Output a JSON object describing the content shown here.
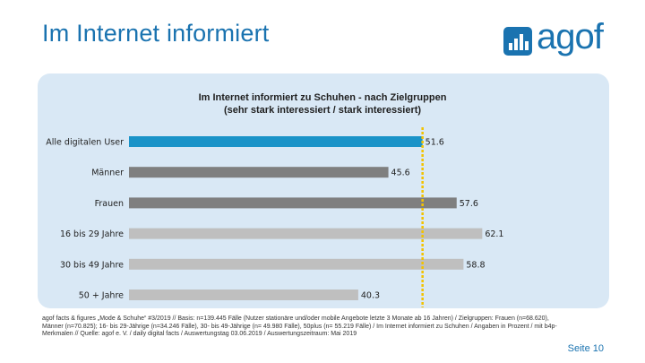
{
  "header": {
    "title": "Im Internet informiert",
    "logo_text": "agof"
  },
  "chart_data": {
    "type": "bar",
    "orientation": "horizontal",
    "title": "Im Internet informiert zu Schuhen -  nach Zielgruppen",
    "subtitle": "(sehr stark interessiert / stark interessiert)",
    "categories": [
      "Alle digitalen User",
      "Männer",
      "Frauen",
      "16 bis 29 Jahre",
      "30 bis 49 Jahre",
      "50 + Jahre"
    ],
    "values": [
      51.6,
      45.6,
      57.6,
      62.1,
      58.8,
      40.3
    ],
    "value_labels": [
      "51.6",
      "45.6",
      "57.6",
      "62.1",
      "58.8",
      "40.3"
    ],
    "colors": [
      "#1a93c8",
      "#7f7f7f",
      "#7f7f7f",
      "#bfbfbf",
      "#bfbfbf",
      "#bfbfbf"
    ],
    "reference_line": {
      "value": 51.6,
      "color": "#f2c200",
      "style": "dashed"
    },
    "xlim": [
      0,
      70
    ],
    "grid": false,
    "legend": "none"
  },
  "footer": {
    "note": "agof facts & figures „Mode & Schuhe“ #3/2019 // Basis: n=139.445 Fälle (Nutzer stationäre und/oder mobile Angebote letzte 3 Monate ab 16 Jahren) / Zielgruppen: Frauen (n=68.620), Männer (n=70.825); 16- bis 29-Jährige (n=34.246 Fälle), 30- bis 49-Jährige (n= 49.980 Fälle), 50plus (n= 55.219 Fälle) / Im Internet informiert zu Schuhen / Angaben in Prozent / mit b4p-Merkmalen // Quelle: agof e. V. / daily digital facts / Auswertungstag 03.06.2019 / Auswertungszeitraum: Mai 2019",
    "page_number": "Seite 10"
  },
  "colors": {
    "brand_blue": "#1a73b0",
    "panel_background": "#d9e8f5"
  }
}
